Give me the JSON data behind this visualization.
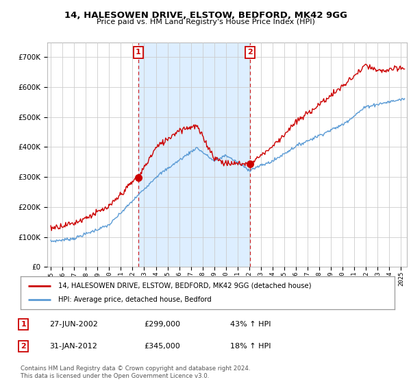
{
  "title": "14, HALESOWEN DRIVE, ELSTOW, BEDFORD, MK42 9GG",
  "subtitle": "Price paid vs. HM Land Registry's House Price Index (HPI)",
  "legend_line1": "14, HALESOWEN DRIVE, ELSTOW, BEDFORD, MK42 9GG (detached house)",
  "legend_line2": "HPI: Average price, detached house, Bedford",
  "sale1_date": "27-JUN-2002",
  "sale1_price": "£299,000",
  "sale1_hpi": "43% ↑ HPI",
  "sale2_date": "31-JAN-2012",
  "sale2_price": "£345,000",
  "sale2_hpi": "18% ↑ HPI",
  "footnote": "Contains HM Land Registry data © Crown copyright and database right 2024.\nThis data is licensed under the Open Government Licence v3.0.",
  "sale1_year": 2002.49,
  "sale1_value": 299000,
  "sale2_year": 2012.08,
  "sale2_value": 345000,
  "house_color": "#cc0000",
  "hpi_color": "#5b9bd5",
  "shade_color": "#ddeeff",
  "ylim": [
    0,
    750000
  ],
  "xlim_start": 1994.7,
  "xlim_end": 2025.5,
  "background_color": "#ffffff",
  "plot_bg_color": "#ffffff",
  "grid_color": "#cccccc"
}
